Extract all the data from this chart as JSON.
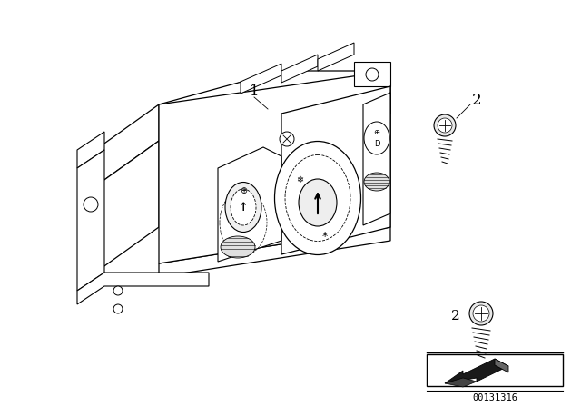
{
  "background_color": "#ffffff",
  "text_color": "#000000",
  "line_color": "#000000",
  "label_fontsize": 12,
  "diagram_num_fontsize": 8,
  "figsize": [
    6.4,
    4.48
  ],
  "dpi": 100,
  "diagram_number": "00131316",
  "part_label_1": "1",
  "part_label_2": "2"
}
